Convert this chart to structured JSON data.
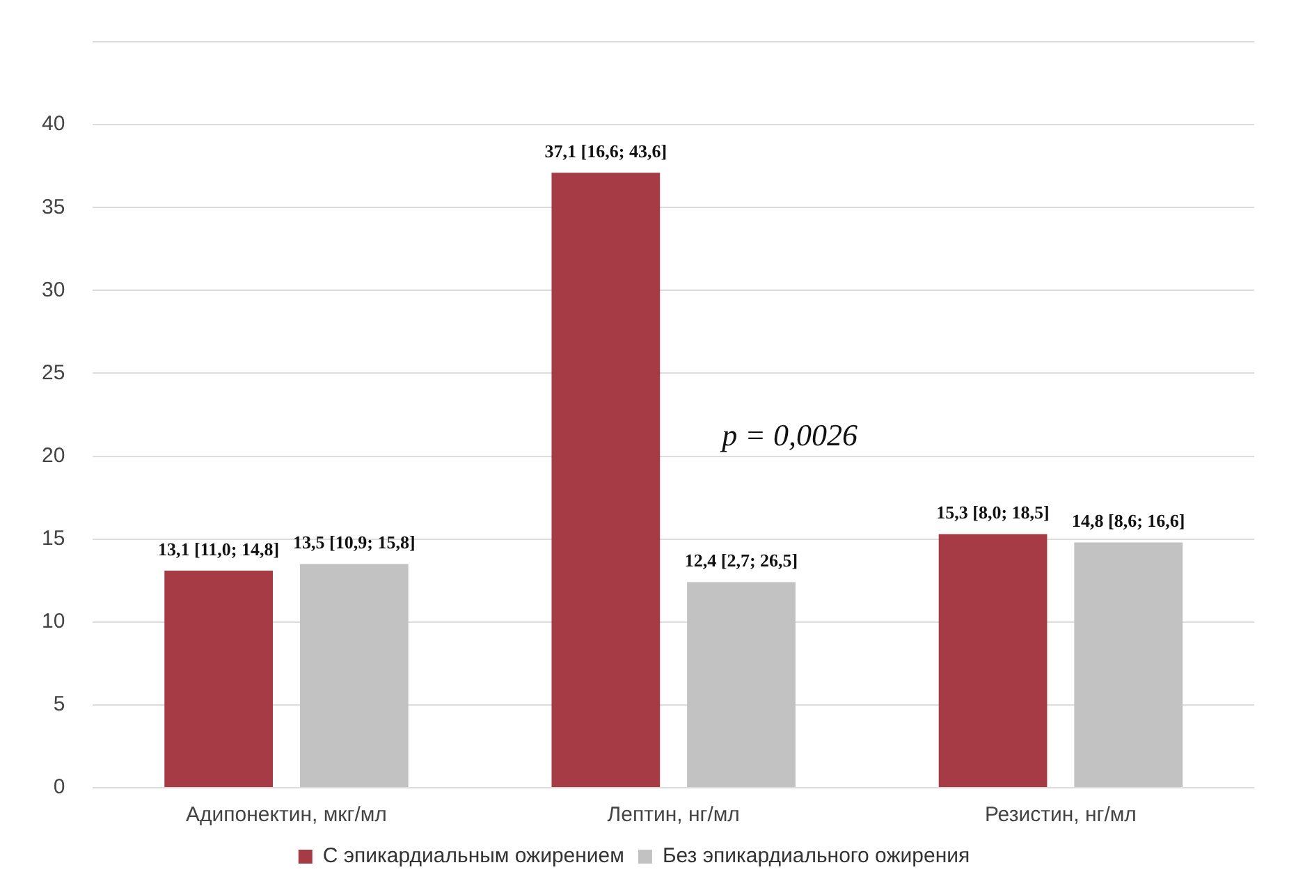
{
  "chart_data": {
    "type": "bar",
    "categories": [
      "Адипонектин, мкг/мл",
      "Лептин, нг/мл",
      "Резистин, нг/мл"
    ],
    "series": [
      {
        "name": "С эпикардиальным ожирением",
        "color": "#a63a45",
        "values": [
          13.1,
          37.1,
          15.3
        ],
        "value_labels": [
          "13,1 [11,0; 14,8]",
          "37,1 [16,6; 43,6]",
          "15,3 [8,0; 18,5]"
        ]
      },
      {
        "name": "Без эпикардиального ожирения",
        "color": "#c2c2c2",
        "values": [
          13.5,
          12.4,
          14.8
        ],
        "value_labels": [
          "13,5 [10,9; 15,8]",
          "12,4 [2,7; 26,5]",
          "14,8 [8,6; 16,6]"
        ]
      }
    ],
    "ylim": [
      0,
      45
    ],
    "yticks": [
      0,
      5,
      10,
      15,
      20,
      25,
      30,
      35,
      40,
      {
        "value": 45,
        "label": null
      }
    ],
    "grid": "y",
    "legend": "bottom",
    "annotations": [
      "p = 0,0026"
    ]
  }
}
